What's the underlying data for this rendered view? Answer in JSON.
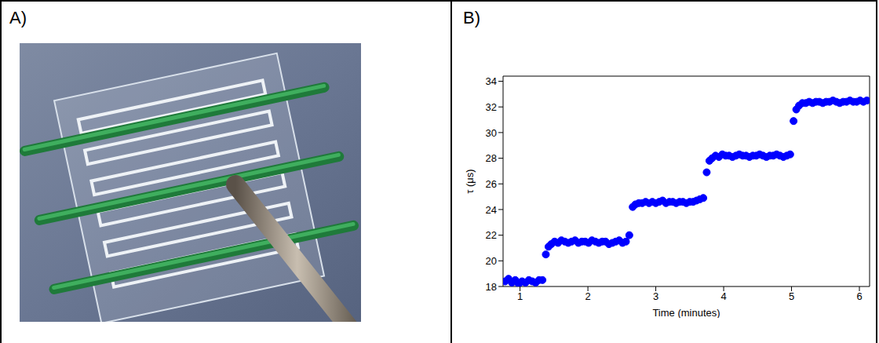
{
  "panel_labels": [
    "A)",
    "B)"
  ],
  "chart_data": {
    "type": "scatter",
    "x_label": "Time (minutes)",
    "y_label": "τ (μs)",
    "xlim": [
      0.75,
      6.15
    ],
    "ylim": [
      18,
      34.4
    ],
    "xticks": [
      1,
      2,
      3,
      4,
      5,
      6
    ],
    "yticks": [
      18,
      20,
      22,
      24,
      26,
      28,
      30,
      32,
      34
    ],
    "grid": false,
    "color": "#0000ff",
    "marker": "circle",
    "x": [
      0.78,
      0.83,
      0.88,
      0.93,
      0.98,
      1.03,
      1.08,
      1.13,
      1.18,
      1.23,
      1.28,
      1.33,
      1.38,
      1.42,
      1.46,
      1.51,
      1.56,
      1.61,
      1.66,
      1.71,
      1.76,
      1.81,
      1.86,
      1.91,
      1.96,
      2.01,
      2.06,
      2.11,
      2.16,
      2.21,
      2.26,
      2.31,
      2.36,
      2.41,
      2.46,
      2.51,
      2.56,
      2.61,
      2.66,
      2.7,
      2.75,
      2.8,
      2.85,
      2.9,
      2.95,
      3.0,
      3.05,
      3.1,
      3.15,
      3.2,
      3.25,
      3.3,
      3.35,
      3.4,
      3.45,
      3.5,
      3.55,
      3.6,
      3.65,
      3.7,
      3.75,
      3.79,
      3.83,
      3.88,
      3.93,
      3.98,
      4.03,
      4.08,
      4.13,
      4.18,
      4.23,
      4.28,
      4.33,
      4.38,
      4.43,
      4.48,
      4.53,
      4.58,
      4.63,
      4.68,
      4.73,
      4.78,
      4.83,
      4.88,
      4.93,
      4.98,
      5.03,
      5.07,
      5.11,
      5.16,
      5.21,
      5.26,
      5.31,
      5.36,
      5.41,
      5.46,
      5.51,
      5.56,
      5.61,
      5.66,
      5.71,
      5.76,
      5.81,
      5.86,
      5.91,
      5.96,
      6.01,
      6.06,
      6.11
    ],
    "values": [
      18.4,
      18.6,
      18.3,
      18.5,
      18.2,
      18.4,
      18.3,
      18.5,
      18.4,
      18.3,
      18.5,
      18.5,
      20.5,
      21.1,
      21.3,
      21.5,
      21.4,
      21.6,
      21.5,
      21.4,
      21.5,
      21.6,
      21.4,
      21.5,
      21.5,
      21.4,
      21.6,
      21.5,
      21.4,
      21.5,
      21.5,
      21.3,
      21.4,
      21.5,
      21.6,
      21.4,
      21.5,
      22.0,
      24.2,
      24.4,
      24.5,
      24.5,
      24.6,
      24.5,
      24.6,
      24.5,
      24.6,
      24.7,
      24.5,
      24.6,
      24.6,
      24.5,
      24.6,
      24.6,
      24.5,
      24.6,
      24.6,
      24.7,
      24.8,
      24.9,
      26.9,
      27.8,
      28.0,
      28.2,
      28.1,
      28.3,
      28.2,
      28.2,
      28.1,
      28.2,
      28.3,
      28.2,
      28.2,
      28.1,
      28.2,
      28.2,
      28.3,
      28.2,
      28.1,
      28.2,
      28.2,
      28.3,
      28.2,
      28.1,
      28.2,
      28.3,
      30.9,
      31.8,
      32.1,
      32.3,
      32.3,
      32.4,
      32.3,
      32.4,
      32.4,
      32.3,
      32.4,
      32.4,
      32.5,
      32.4,
      32.3,
      32.4,
      32.4,
      32.5,
      32.4,
      32.4,
      32.5,
      32.4,
      32.5
    ]
  }
}
